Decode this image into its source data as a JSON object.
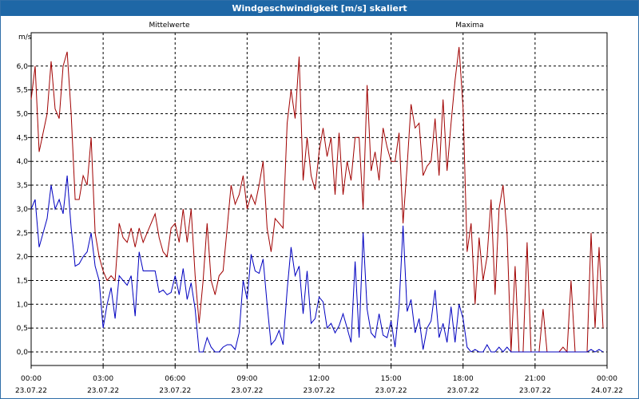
{
  "window": {
    "title": "Windgeschwindigkeit [m/s] skaliert"
  },
  "chart_data": {
    "type": "line",
    "title": "Windgeschwindigkeit [m/s] skaliert",
    "ylabel": "m/s",
    "ylim": [
      -0.3,
      6.5
    ],
    "xlim": [
      0,
      24
    ],
    "grid": true,
    "y_ticks": [
      "0,0",
      "0,5",
      "1,0",
      "1,5",
      "2,0",
      "2,5",
      "3,0",
      "3,5",
      "4,0",
      "4,5",
      "5,0",
      "5,5",
      "6,0"
    ],
    "x_ticks": [
      {
        "time": "00:00",
        "date": "23.07.22"
      },
      {
        "time": "03:00",
        "date": "23.07.22"
      },
      {
        "time": "06:00",
        "date": "23.07.22"
      },
      {
        "time": "09:00",
        "date": "23.07.22"
      },
      {
        "time": "12:00",
        "date": "23.07.22"
      },
      {
        "time": "15:00",
        "date": "23.07.22"
      },
      {
        "time": "18:00",
        "date": "23.07.22"
      },
      {
        "time": "21:00",
        "date": "23.07.22"
      },
      {
        "time": "00:00",
        "date": "24.07.22"
      }
    ],
    "series": [
      {
        "name": "Mittelwerte",
        "color": "#0000c0",
        "x": [
          0,
          0.167,
          0.333,
          0.5,
          0.667,
          0.833,
          1,
          1.167,
          1.333,
          1.5,
          1.667,
          1.833,
          2,
          2.167,
          2.333,
          2.5,
          2.667,
          2.833,
          3,
          3.167,
          3.333,
          3.5,
          3.667,
          3.833,
          4,
          4.167,
          4.333,
          4.5,
          4.667,
          4.833,
          5,
          5.167,
          5.333,
          5.5,
          5.667,
          5.833,
          6,
          6.167,
          6.333,
          6.5,
          6.667,
          6.833,
          7,
          7.167,
          7.333,
          7.5,
          7.667,
          7.833,
          8,
          8.167,
          8.333,
          8.5,
          8.667,
          8.833,
          9,
          9.167,
          9.333,
          9.5,
          9.667,
          9.833,
          10,
          10.167,
          10.333,
          10.5,
          10.667,
          10.833,
          11,
          11.167,
          11.333,
          11.5,
          11.667,
          11.833,
          12,
          12.167,
          12.333,
          12.5,
          12.667,
          12.833,
          13,
          13.167,
          13.333,
          13.5,
          13.667,
          13.833,
          14,
          14.167,
          14.333,
          14.5,
          14.667,
          14.833,
          15,
          15.167,
          15.333,
          15.5,
          15.667,
          15.833,
          16,
          16.167,
          16.333,
          16.5,
          16.667,
          16.833,
          17,
          17.167,
          17.333,
          17.5,
          17.667,
          17.833,
          18,
          18.167,
          18.333,
          18.5,
          18.667,
          18.833,
          19,
          19.167,
          19.333,
          19.5,
          19.667,
          19.833,
          20,
          20.167,
          20.333,
          20.5,
          20.667,
          20.833,
          21,
          21.167,
          21.333,
          21.5,
          21.667,
          21.833,
          22,
          22.167,
          22.333,
          22.5,
          22.667,
          22.833,
          23,
          23.167,
          23.333,
          23.5,
          23.667,
          23.833
        ],
        "values": [
          3.0,
          3.2,
          2.2,
          2.5,
          2.8,
          3.5,
          3.0,
          3.2,
          2.9,
          3.7,
          2.6,
          1.8,
          1.85,
          2.0,
          2.1,
          2.5,
          1.8,
          1.5,
          0.5,
          1.0,
          1.35,
          0.7,
          1.6,
          1.5,
          1.4,
          1.6,
          0.75,
          2.1,
          1.7,
          1.7,
          1.7,
          1.7,
          1.25,
          1.3,
          1.2,
          1.25,
          1.6,
          1.2,
          1.75,
          1.1,
          1.45,
          0.9,
          0.0,
          0.0,
          0.3,
          0.1,
          0.0,
          0.0,
          0.1,
          0.15,
          0.15,
          0.05,
          0.4,
          1.5,
          1.1,
          2.05,
          1.7,
          1.65,
          1.95,
          1.0,
          0.15,
          0.25,
          0.45,
          0.15,
          1.3,
          2.2,
          1.6,
          1.8,
          0.8,
          1.7,
          0.6,
          0.7,
          1.15,
          1.05,
          0.5,
          0.6,
          0.4,
          0.55,
          0.8,
          0.5,
          0.2,
          1.9,
          0.3,
          2.5,
          0.9,
          0.4,
          0.3,
          0.8,
          0.35,
          0.3,
          0.65,
          0.1,
          0.95,
          2.65,
          0.85,
          1.1,
          0.4,
          0.7,
          0.05,
          0.5,
          0.65,
          1.3,
          0.3,
          0.6,
          0.2,
          0.95,
          0.2,
          1.0,
          0.7,
          0.1,
          0.0,
          0.05,
          0.0,
          0.0,
          0.15,
          0.0,
          0.0,
          0.1,
          0.0,
          0.1,
          0.0,
          0.0,
          0.0,
          0.0,
          0.0,
          0.0,
          0.0,
          0.0,
          0.0,
          0.0,
          0.0,
          0.0,
          0.0,
          0.0,
          0.0,
          0.0,
          0.0,
          0.0,
          0.0,
          0.0,
          0.05,
          0.0,
          0.05,
          0.0
        ]
      },
      {
        "name": "Maxima",
        "color": "#a00000",
        "x": [
          0,
          0.167,
          0.333,
          0.5,
          0.667,
          0.833,
          1,
          1.167,
          1.333,
          1.5,
          1.667,
          1.833,
          2,
          2.167,
          2.333,
          2.5,
          2.667,
          2.833,
          3,
          3.167,
          3.333,
          3.5,
          3.667,
          3.833,
          4,
          4.167,
          4.333,
          4.5,
          4.667,
          4.833,
          5,
          5.167,
          5.333,
          5.5,
          5.667,
          5.833,
          6,
          6.167,
          6.333,
          6.5,
          6.667,
          6.833,
          7,
          7.167,
          7.333,
          7.5,
          7.667,
          7.833,
          8,
          8.167,
          8.333,
          8.5,
          8.667,
          8.833,
          9,
          9.167,
          9.333,
          9.5,
          9.667,
          9.833,
          10,
          10.167,
          10.333,
          10.5,
          10.667,
          10.833,
          11,
          11.167,
          11.333,
          11.5,
          11.667,
          11.833,
          12,
          12.167,
          12.333,
          12.5,
          12.667,
          12.833,
          13,
          13.167,
          13.333,
          13.5,
          13.667,
          13.833,
          14,
          14.167,
          14.333,
          14.5,
          14.667,
          14.833,
          15,
          15.167,
          15.333,
          15.5,
          15.667,
          15.833,
          16,
          16.167,
          16.333,
          16.5,
          16.667,
          16.833,
          17,
          17.167,
          17.333,
          17.5,
          17.667,
          17.833,
          18,
          18.167,
          18.333,
          18.5,
          18.667,
          18.833,
          19,
          19.167,
          19.333,
          19.5,
          19.667,
          19.833,
          20,
          20.167,
          20.333,
          20.5,
          20.667,
          20.833,
          21,
          21.167,
          21.333,
          21.5,
          21.667,
          21.833,
          22,
          22.167,
          22.333,
          22.5,
          22.667,
          22.833,
          23,
          23.167,
          23.333,
          23.5,
          23.667,
          23.833
        ],
        "values": [
          5.3,
          6.0,
          4.2,
          4.6,
          5.0,
          6.1,
          5.1,
          4.9,
          6.0,
          6.3,
          5.0,
          3.2,
          3.2,
          3.7,
          3.5,
          4.5,
          2.5,
          2.0,
          1.7,
          1.5,
          1.6,
          1.5,
          2.7,
          2.4,
          2.3,
          2.6,
          2.2,
          2.6,
          2.3,
          2.5,
          2.7,
          2.9,
          2.4,
          2.1,
          2.0,
          2.6,
          2.7,
          2.3,
          3.0,
          2.3,
          3.0,
          1.6,
          0.6,
          1.5,
          2.7,
          1.5,
          1.2,
          1.6,
          1.7,
          2.6,
          3.5,
          3.1,
          3.3,
          3.7,
          3.0,
          3.3,
          3.1,
          3.5,
          4.0,
          2.6,
          2.1,
          2.8,
          2.7,
          2.6,
          4.8,
          5.5,
          4.9,
          6.2,
          3.6,
          4.5,
          3.7,
          3.4,
          4.2,
          4.7,
          4.1,
          4.5,
          3.3,
          4.6,
          3.3,
          4.0,
          3.6,
          4.5,
          4.5,
          3.0,
          5.6,
          3.8,
          4.2,
          3.6,
          4.7,
          4.3,
          4.0,
          4.0,
          4.6,
          2.7,
          3.9,
          5.2,
          4.7,
          4.8,
          3.7,
          3.9,
          4.0,
          4.9,
          3.7,
          5.3,
          3.8,
          4.8,
          5.7,
          6.4,
          5.1,
          2.1,
          2.7,
          1.0,
          2.4,
          1.5,
          2.0,
          3.2,
          1.2,
          3.0,
          3.5,
          2.5,
          0.0,
          1.8,
          0.0,
          0.0,
          2.3,
          0.0,
          0.0,
          0.0,
          0.9,
          0.0,
          0.0,
          0.0,
          0.0,
          0.1,
          0.0,
          1.5,
          0.0,
          0.0,
          0.0,
          0.0,
          2.5,
          0.5,
          2.2,
          0.5
        ]
      }
    ]
  }
}
